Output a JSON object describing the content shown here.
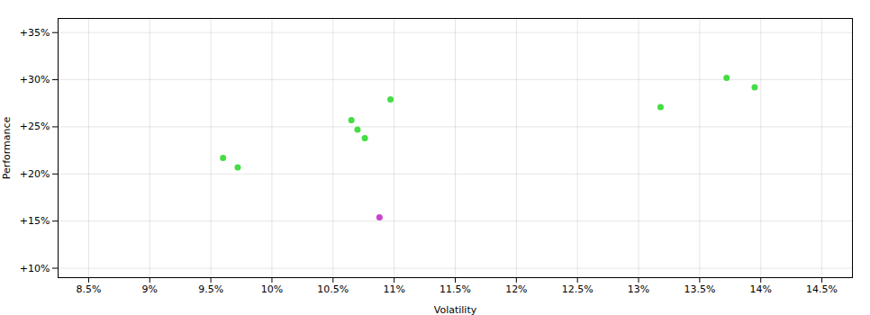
{
  "chart_data": {
    "type": "scatter",
    "xlabel": "Volatility",
    "ylabel": "Performance",
    "series": [
      {
        "color": "#44dd44",
        "x": [
          9.6,
          9.72,
          10.65,
          10.7,
          10.76,
          10.97,
          13.18,
          13.72,
          13.95
        ],
        "y": [
          21.7,
          20.7,
          25.7,
          24.7,
          23.8,
          27.9,
          27.1,
          30.2,
          29.2
        ]
      },
      {
        "color": "#cc44cc",
        "x": [
          10.88
        ],
        "y": [
          15.4
        ]
      }
    ],
    "xlim": [
      8.25,
      14.75
    ],
    "ylim": [
      9.0,
      36.5
    ],
    "xticks": [
      {
        "value": 8.5,
        "label": "8.5%"
      },
      {
        "value": 9.0,
        "label": "9%"
      },
      {
        "value": 9.5,
        "label": "9.5%"
      },
      {
        "value": 10.0,
        "label": "10%"
      },
      {
        "value": 10.5,
        "label": "10.5%"
      },
      {
        "value": 11.0,
        "label": "11%"
      },
      {
        "value": 11.5,
        "label": "11.5%"
      },
      {
        "value": 12.0,
        "label": "12%"
      },
      {
        "value": 12.5,
        "label": "12.5%"
      },
      {
        "value": 13.0,
        "label": "13%"
      },
      {
        "value": 13.5,
        "label": "13.5%"
      },
      {
        "value": 14.0,
        "label": "14%"
      },
      {
        "value": 14.5,
        "label": "14.5%"
      }
    ],
    "yticks": [
      {
        "value": 10,
        "label": "+10%"
      },
      {
        "value": 15,
        "label": "+15%"
      },
      {
        "value": 20,
        "label": "+20%"
      },
      {
        "value": 25,
        "label": "+25%"
      },
      {
        "value": 30,
        "label": "+30%"
      },
      {
        "value": 35,
        "label": "+35%"
      }
    ],
    "grid": true
  }
}
